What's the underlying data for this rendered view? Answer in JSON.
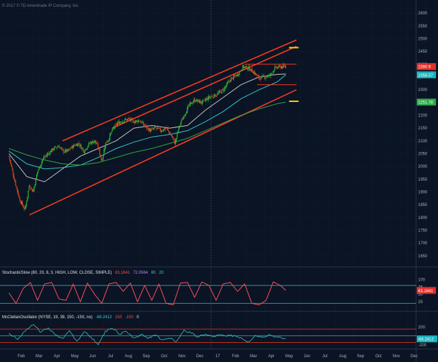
{
  "copyright": "© 2017 © TD Ameritrade IP Company, Inc.",
  "colors": {
    "background": "#0a1424",
    "grid": "#1a2638",
    "candle_up": "#2dbb3a",
    "candle_down": "#e04a22",
    "channel": "#ff3b1f",
    "sma_short": "#c8c8c8",
    "sma_mid": "#37c8d0",
    "sma_long": "#2ea84a",
    "stoch": "#ff4f5e",
    "mcclellan": "#37c8d0",
    "price_tag_red": "#e0302a",
    "price_tag_cyan": "#19b3bd",
    "price_tag_green": "#2ea84a",
    "marker_yellow": "#ffd300"
  },
  "chart_data": [
    {
      "type": "candlestick",
      "title": "",
      "x_ticks": [
        "Feb",
        "Mar",
        "Apr",
        "May",
        "Jun",
        "Jul",
        "Aug",
        "Sep",
        "Oct",
        "Nov",
        "Dec",
        "17",
        "Feb",
        "Mar",
        "Apr",
        "May",
        "Jun",
        "Jul",
        "Aug",
        "Sep",
        "Oct",
        "Nov",
        "Dec"
      ],
      "y_ticks": [
        1650,
        1700,
        1750,
        1800,
        1850,
        1900,
        1950,
        2000,
        2050,
        2100,
        2150,
        2200,
        2250,
        2300,
        2350,
        2400,
        2450,
        2500,
        2550,
        2600
      ],
      "ylim": [
        1620,
        2630
      ],
      "grid": true,
      "last_price": "2390.9",
      "price_tags": [
        {
          "label": "2390.9",
          "value": 2390.9,
          "color": "#e0302a"
        },
        {
          "label": "2358.57",
          "value": 2358.57,
          "color": "#19b3bd"
        },
        {
          "label": "2251.78",
          "value": 2251.78,
          "color": "#2ea84a"
        }
      ],
      "close_path": [
        {
          "x": 0,
          "y": 2040
        },
        {
          "x": 0.3,
          "y": 1950
        },
        {
          "x": 0.6,
          "y": 1870
        },
        {
          "x": 0.9,
          "y": 1830
        },
        {
          "x": 1.15,
          "y": 1930
        },
        {
          "x": 1.35,
          "y": 1900
        },
        {
          "x": 1.6,
          "y": 1980
        },
        {
          "x": 1.9,
          "y": 2030
        },
        {
          "x": 2.2,
          "y": 2050
        },
        {
          "x": 2.5,
          "y": 2070
        },
        {
          "x": 2.8,
          "y": 2080
        },
        {
          "x": 3.0,
          "y": 2060
        },
        {
          "x": 3.3,
          "y": 2060
        },
        {
          "x": 3.6,
          "y": 2080
        },
        {
          "x": 3.9,
          "y": 2090
        },
        {
          "x": 4.2,
          "y": 2060
        },
        {
          "x": 4.5,
          "y": 2090
        },
        {
          "x": 4.8,
          "y": 2100
        },
        {
          "x": 5.0,
          "y": 2075
        },
        {
          "x": 5.2,
          "y": 2020
        },
        {
          "x": 5.4,
          "y": 2090
        },
        {
          "x": 5.6,
          "y": 2110
        },
        {
          "x": 5.8,
          "y": 2145
        },
        {
          "x": 6.1,
          "y": 2170
        },
        {
          "x": 6.4,
          "y": 2180
        },
        {
          "x": 6.7,
          "y": 2185
        },
        {
          "x": 7.0,
          "y": 2175
        },
        {
          "x": 7.3,
          "y": 2180
        },
        {
          "x": 7.6,
          "y": 2160
        },
        {
          "x": 7.9,
          "y": 2140
        },
        {
          "x": 8.2,
          "y": 2150
        },
        {
          "x": 8.5,
          "y": 2140
        },
        {
          "x": 8.8,
          "y": 2150
        },
        {
          "x": 9.1,
          "y": 2120
        },
        {
          "x": 9.3,
          "y": 2090
        },
        {
          "x": 9.5,
          "y": 2150
        },
        {
          "x": 9.8,
          "y": 2200
        },
        {
          "x": 10.1,
          "y": 2240
        },
        {
          "x": 10.4,
          "y": 2260
        },
        {
          "x": 10.8,
          "y": 2250
        },
        {
          "x": 11.2,
          "y": 2270
        },
        {
          "x": 11.6,
          "y": 2280
        },
        {
          "x": 12.0,
          "y": 2300
        },
        {
          "x": 12.4,
          "y": 2340
        },
        {
          "x": 12.8,
          "y": 2360
        },
        {
          "x": 13.1,
          "y": 2390
        },
        {
          "x": 13.4,
          "y": 2385
        },
        {
          "x": 13.7,
          "y": 2370
        },
        {
          "x": 14.0,
          "y": 2345
        },
        {
          "x": 14.3,
          "y": 2350
        },
        {
          "x": 14.6,
          "y": 2355
        },
        {
          "x": 14.9,
          "y": 2385
        },
        {
          "x": 15.2,
          "y": 2390
        },
        {
          "x": 15.5,
          "y": 2390
        }
      ],
      "moving_averages": [
        {
          "name": "",
          "color_key": "sma_short",
          "points": [
            {
              "x": 0,
              "y": 2050
            },
            {
              "x": 1.0,
              "y": 1960
            },
            {
              "x": 2.0,
              "y": 1940
            },
            {
              "x": 3.0,
              "y": 1990
            },
            {
              "x": 4.0,
              "y": 2040
            },
            {
              "x": 5.0,
              "y": 2070
            },
            {
              "x": 6.0,
              "y": 2100
            },
            {
              "x": 7.0,
              "y": 2150
            },
            {
              "x": 8.0,
              "y": 2160
            },
            {
              "x": 9.0,
              "y": 2150
            },
            {
              "x": 10.0,
              "y": 2160
            },
            {
              "x": 11.0,
              "y": 2220
            },
            {
              "x": 12.0,
              "y": 2270
            },
            {
              "x": 13.0,
              "y": 2320
            },
            {
              "x": 14.0,
              "y": 2350
            },
            {
              "x": 15.0,
              "y": 2360
            },
            {
              "x": 15.5,
              "y": 2362
            }
          ]
        },
        {
          "name": "",
          "color_key": "sma_mid",
          "points": [
            {
              "x": 0,
              "y": 2060
            },
            {
              "x": 1.0,
              "y": 2010
            },
            {
              "x": 2.0,
              "y": 1990
            },
            {
              "x": 3.0,
              "y": 1995
            },
            {
              "x": 4.0,
              "y": 2005
            },
            {
              "x": 5.0,
              "y": 2035
            },
            {
              "x": 6.0,
              "y": 2070
            },
            {
              "x": 7.0,
              "y": 2095
            },
            {
              "x": 8.0,
              "y": 2115
            },
            {
              "x": 9.0,
              "y": 2125
            },
            {
              "x": 10.0,
              "y": 2140
            },
            {
              "x": 11.0,
              "y": 2175
            },
            {
              "x": 12.0,
              "y": 2215
            },
            {
              "x": 13.0,
              "y": 2265
            },
            {
              "x": 14.0,
              "y": 2300
            },
            {
              "x": 15.0,
              "y": 2330
            },
            {
              "x": 15.5,
              "y": 2358.57
            }
          ]
        },
        {
          "name": "",
          "color_key": "sma_long",
          "points": [
            {
              "x": 0,
              "y": 2070
            },
            {
              "x": 1.0,
              "y": 2045
            },
            {
              "x": 2.0,
              "y": 2025
            },
            {
              "x": 3.0,
              "y": 2010
            },
            {
              "x": 4.0,
              "y": 2005
            },
            {
              "x": 5.0,
              "y": 2015
            },
            {
              "x": 6.0,
              "y": 2035
            },
            {
              "x": 7.0,
              "y": 2055
            },
            {
              "x": 8.0,
              "y": 2070
            },
            {
              "x": 9.0,
              "y": 2090
            },
            {
              "x": 10.0,
              "y": 2110
            },
            {
              "x": 11.0,
              "y": 2140
            },
            {
              "x": 12.0,
              "y": 2170
            },
            {
              "x": 13.0,
              "y": 2200
            },
            {
              "x": 14.0,
              "y": 2225
            },
            {
              "x": 15.0,
              "y": 2245
            },
            {
              "x": 15.5,
              "y": 2251.78
            }
          ]
        }
      ],
      "channel_lines": [
        {
          "from": {
            "x": 1.15,
            "y": 1810
          },
          "to": {
            "x": 16.1,
            "y": 2300
          }
        },
        {
          "from": {
            "x": 3.0,
            "y": 2100
          },
          "to": {
            "x": 16.1,
            "y": 2495
          }
        },
        {
          "from": {
            "x": 5.8,
            "y": 2150
          },
          "to": {
            "x": 16.1,
            "y": 2470
          }
        }
      ],
      "horizontal_levels": [
        {
          "value": 2400,
          "from_x": 13.2,
          "to_x": 16.1
        },
        {
          "value": 2320,
          "from_x": 13.9,
          "to_x": 16.1
        }
      ],
      "markers": [
        {
          "value": 2465,
          "x": 15.95
        },
        {
          "value": 2255,
          "x": 15.95
        }
      ]
    },
    {
      "type": "line",
      "title": "StochasticSlow (80, 20, 8, 3, HIGH, LOW, CLOSE, SIMPLE)",
      "legend_values": [
        "63.1841",
        "72.0564",
        "80",
        "20"
      ],
      "y_ticks": [
        25,
        50,
        75,
        100
      ],
      "ylim": [
        0,
        110
      ],
      "levels": [
        80,
        20
      ],
      "last_value_label": "63.1841",
      "series": [
        {
          "name": "",
          "points": [
            {
              "x": 0,
              "y": 55
            },
            {
              "x": 0.4,
              "y": 20
            },
            {
              "x": 0.8,
              "y": 70
            },
            {
              "x": 1.2,
              "y": 90
            },
            {
              "x": 1.6,
              "y": 30
            },
            {
              "x": 2.0,
              "y": 85
            },
            {
              "x": 2.4,
              "y": 90
            },
            {
              "x": 2.8,
              "y": 35
            },
            {
              "x": 3.2,
              "y": 30
            },
            {
              "x": 3.6,
              "y": 85
            },
            {
              "x": 4.0,
              "y": 25
            },
            {
              "x": 4.4,
              "y": 88
            },
            {
              "x": 4.8,
              "y": 50
            },
            {
              "x": 5.2,
              "y": 20
            },
            {
              "x": 5.6,
              "y": 85
            },
            {
              "x": 6.0,
              "y": 90
            },
            {
              "x": 6.4,
              "y": 60
            },
            {
              "x": 6.8,
              "y": 88
            },
            {
              "x": 7.2,
              "y": 25
            },
            {
              "x": 7.6,
              "y": 80
            },
            {
              "x": 8.0,
              "y": 30
            },
            {
              "x": 8.4,
              "y": 85
            },
            {
              "x": 8.8,
              "y": 20
            },
            {
              "x": 9.2,
              "y": 15
            },
            {
              "x": 9.6,
              "y": 88
            },
            {
              "x": 10.0,
              "y": 90
            },
            {
              "x": 10.4,
              "y": 40
            },
            {
              "x": 10.8,
              "y": 92
            },
            {
              "x": 11.2,
              "y": 80
            },
            {
              "x": 11.6,
              "y": 30
            },
            {
              "x": 12.0,
              "y": 85
            },
            {
              "x": 12.4,
              "y": 90
            },
            {
              "x": 12.8,
              "y": 60
            },
            {
              "x": 13.2,
              "y": 85
            },
            {
              "x": 13.6,
              "y": 20
            },
            {
              "x": 14.0,
              "y": 15
            },
            {
              "x": 14.4,
              "y": 30
            },
            {
              "x": 14.8,
              "y": 92
            },
            {
              "x": 15.2,
              "y": 80
            },
            {
              "x": 15.5,
              "y": 63.1841
            }
          ]
        }
      ]
    },
    {
      "type": "line",
      "title": "McClellanOscillator (NYSE, 19, 39, 150, -150, no)",
      "legend_values": [
        "-68.2412",
        "150",
        "-150",
        "0"
      ],
      "y_ticks": [
        200,
        -200
      ],
      "ylim": [
        -250,
        320
      ],
      "levels": [
        150,
        -150,
        0
      ],
      "last_value_label": "-68.2412",
      "series": [
        {
          "name": "",
          "points": [
            {
              "x": 0,
              "y": 60
            },
            {
              "x": 0.5,
              "y": -80
            },
            {
              "x": 1.0,
              "y": 150
            },
            {
              "x": 1.4,
              "y": 250
            },
            {
              "x": 1.8,
              "y": 80
            },
            {
              "x": 2.2,
              "y": 180
            },
            {
              "x": 2.6,
              "y": 20
            },
            {
              "x": 3.0,
              "y": -60
            },
            {
              "x": 3.4,
              "y": 120
            },
            {
              "x": 3.8,
              "y": -120
            },
            {
              "x": 4.2,
              "y": 90
            },
            {
              "x": 4.6,
              "y": -30
            },
            {
              "x": 5.0,
              "y": -200
            },
            {
              "x": 5.4,
              "y": 110
            },
            {
              "x": 5.8,
              "y": 160
            },
            {
              "x": 6.2,
              "y": 40
            },
            {
              "x": 6.6,
              "y": 90
            },
            {
              "x": 7.0,
              "y": -40
            },
            {
              "x": 7.4,
              "y": 30
            },
            {
              "x": 7.8,
              "y": -60
            },
            {
              "x": 8.2,
              "y": 20
            },
            {
              "x": 8.6,
              "y": -90
            },
            {
              "x": 9.0,
              "y": -60
            },
            {
              "x": 9.4,
              "y": -120
            },
            {
              "x": 9.8,
              "y": 130
            },
            {
              "x": 10.2,
              "y": 60
            },
            {
              "x": 10.6,
              "y": -30
            },
            {
              "x": 11.0,
              "y": 40
            },
            {
              "x": 11.4,
              "y": -20
            },
            {
              "x": 11.8,
              "y": 20
            },
            {
              "x": 12.2,
              "y": -10
            },
            {
              "x": 12.6,
              "y": 10
            },
            {
              "x": 13.0,
              "y": -40
            },
            {
              "x": 13.4,
              "y": -130
            },
            {
              "x": 13.8,
              "y": 10
            },
            {
              "x": 14.2,
              "y": -20
            },
            {
              "x": 14.6,
              "y": 30
            },
            {
              "x": 15.0,
              "y": -30
            },
            {
              "x": 15.5,
              "y": -68.2412
            }
          ]
        }
      ]
    }
  ]
}
